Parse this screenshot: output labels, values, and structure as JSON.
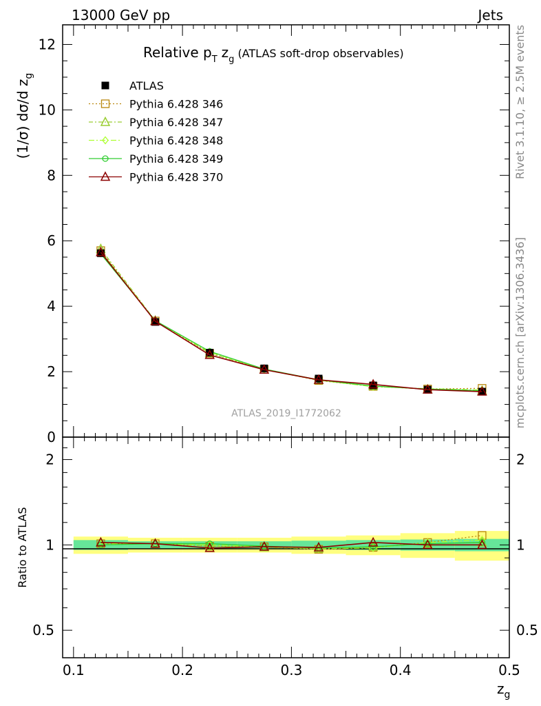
{
  "header": {
    "left": "13000 GeV pp",
    "right": "Jets"
  },
  "side": {
    "rivet": "Rivet 3.1.10, ≥ 2.5M events",
    "mcplots": "mcplots.cern.ch [arXiv:1306.3436]"
  },
  "colors": {
    "atlas": "#000000",
    "p346": "#b8860b",
    "p347": "#9acd32",
    "p348": "#adff2f",
    "p349": "#32cd32",
    "p370": "#8b0000",
    "band_inner": "#66e699",
    "band_outer": "#ffff80"
  },
  "chart_data": [
    {
      "type": "line",
      "title": "Relative p_T z_g (ATLAS soft-drop observables)",
      "title_parts": {
        "main": "Relative p",
        "sub_T": "T",
        "zg": "z",
        "sub_g": "g",
        "rest": "(ATLAS soft-drop observables)"
      },
      "ylabel": "(1/σ) dσ/d z_g",
      "ylabel_parts": {
        "main": "(1/σ) dσ/d z",
        "sub": "g"
      },
      "watermark": "ATLAS_2019_I1772062",
      "xlim": [
        0.09,
        0.5
      ],
      "ylim": [
        0,
        12.6
      ],
      "y_ticks": [
        "0",
        "2",
        "4",
        "6",
        "8",
        "10",
        "12"
      ],
      "x": [
        0.125,
        0.175,
        0.225,
        0.275,
        0.325,
        0.375,
        0.425,
        0.475
      ],
      "series": [
        {
          "name": "ATLAS",
          "marker": "square-filled",
          "values": [
            5.62,
            3.52,
            2.58,
            2.1,
            1.79,
            1.58,
            1.45,
            1.39
          ]
        },
        {
          "name": "Pythia 6.428 346",
          "marker": "square-open",
          "values": [
            5.7,
            3.55,
            2.56,
            2.07,
            1.73,
            1.55,
            1.47,
            1.49
          ]
        },
        {
          "name": "Pythia 6.428 347",
          "marker": "triangle-open",
          "values": [
            5.75,
            3.56,
            2.57,
            2.06,
            1.74,
            1.56,
            1.46,
            1.42
          ]
        },
        {
          "name": "Pythia 6.428 348",
          "marker": "diamond-open",
          "values": [
            5.68,
            3.55,
            2.6,
            2.07,
            1.74,
            1.54,
            1.48,
            1.44
          ]
        },
        {
          "name": "Pythia 6.428 349",
          "marker": "circle-cross",
          "values": [
            5.6,
            3.56,
            2.62,
            2.08,
            1.75,
            1.56,
            1.47,
            1.42
          ]
        },
        {
          "name": "Pythia 6.428 370",
          "marker": "triangle-open",
          "values": [
            5.65,
            3.54,
            2.51,
            2.06,
            1.75,
            1.61,
            1.45,
            1.39
          ]
        }
      ]
    },
    {
      "type": "line",
      "ylabel": "Ratio to ATLAS",
      "xlabel": "z_g",
      "xlabel_parts": {
        "main": "z",
        "sub": "g"
      },
      "xlim": [
        0.09,
        0.5
      ],
      "ylim": [
        0.4,
        2.4
      ],
      "y_scale": "log",
      "y_ticks": [
        "0.5",
        "1",
        "2"
      ],
      "x_ticks": [
        "0.1",
        "0.2",
        "0.3",
        "0.4",
        "0.5"
      ],
      "x": [
        0.125,
        0.175,
        0.225,
        0.275,
        0.325,
        0.375,
        0.425,
        0.475
      ],
      "bins": [
        [
          0.1,
          0.15
        ],
        [
          0.15,
          0.2
        ],
        [
          0.2,
          0.25
        ],
        [
          0.25,
          0.3
        ],
        [
          0.3,
          0.35
        ],
        [
          0.35,
          0.4
        ],
        [
          0.4,
          0.45
        ],
        [
          0.45,
          0.5
        ]
      ],
      "band_inner": [
        0.04,
        0.03,
        0.03,
        0.03,
        0.035,
        0.04,
        0.045,
        0.05
      ],
      "band_outer": [
        0.07,
        0.06,
        0.06,
        0.06,
        0.07,
        0.08,
        0.1,
        0.12
      ],
      "series": [
        {
          "name": "Pythia 6.428 346",
          "values": [
            1.01,
            1.01,
            0.99,
            0.985,
            0.965,
            0.98,
            1.02,
            1.08
          ]
        },
        {
          "name": "Pythia 6.428 347",
          "values": [
            1.02,
            1.01,
            0.99,
            0.98,
            0.97,
            0.985,
            1.01,
            1.02
          ]
        },
        {
          "name": "Pythia 6.428 348",
          "values": [
            1.01,
            1.01,
            1.0,
            0.985,
            0.97,
            0.975,
            1.02,
            1.04
          ]
        },
        {
          "name": "Pythia 6.428 349",
          "values": [
            1.0,
            1.01,
            1.01,
            0.99,
            0.975,
            0.985,
            1.01,
            1.02
          ]
        },
        {
          "name": "Pythia 6.428 370",
          "values": [
            1.02,
            1.01,
            0.975,
            0.985,
            0.98,
            1.02,
            1.0,
            1.0
          ]
        }
      ]
    }
  ]
}
